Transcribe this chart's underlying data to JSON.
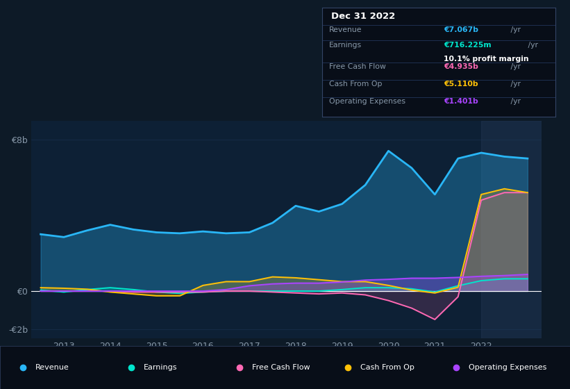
{
  "background_color": "#0d1a27",
  "plot_bg_color": "#0d2035",
  "title": "Dec 31 2022",
  "ylabel_top": "€8b",
  "ylabel_zero": "€0",
  "ylabel_neg": "-€2b",
  "x_years": [
    2012.5,
    2013,
    2013.5,
    2014,
    2014.5,
    2015,
    2015.5,
    2016,
    2016.5,
    2017,
    2017.5,
    2018,
    2018.5,
    2019,
    2019.5,
    2020,
    2020.5,
    2021,
    2021.5,
    2022,
    2022.5,
    2023
  ],
  "revenue": [
    3.0,
    2.85,
    3.2,
    3.5,
    3.25,
    3.1,
    3.05,
    3.15,
    3.05,
    3.1,
    3.6,
    4.5,
    4.2,
    4.6,
    5.6,
    7.4,
    6.5,
    5.1,
    7.0,
    7.3,
    7.1,
    7.0
  ],
  "earnings": [
    0.05,
    -0.05,
    0.08,
    0.18,
    0.08,
    -0.05,
    -0.12,
    -0.05,
    0.0,
    0.0,
    0.0,
    0.0,
    0.0,
    0.08,
    0.18,
    0.18,
    0.12,
    -0.05,
    0.28,
    0.55,
    0.65,
    0.65
  ],
  "free_cash_flow": [
    0.0,
    0.0,
    0.0,
    0.0,
    -0.05,
    -0.05,
    -0.05,
    -0.05,
    0.0,
    0.0,
    -0.05,
    -0.1,
    -0.15,
    -0.1,
    -0.2,
    -0.5,
    -0.9,
    -1.5,
    -0.3,
    4.8,
    5.2,
    5.2
  ],
  "cash_from_op": [
    0.18,
    0.15,
    0.1,
    -0.05,
    -0.15,
    -0.25,
    -0.25,
    0.3,
    0.5,
    0.5,
    0.75,
    0.7,
    0.6,
    0.5,
    0.5,
    0.3,
    0.05,
    -0.1,
    0.2,
    5.1,
    5.4,
    5.2
  ],
  "operating_expenses": [
    0.0,
    0.0,
    0.0,
    0.0,
    0.0,
    0.0,
    0.0,
    0.0,
    0.08,
    0.28,
    0.38,
    0.42,
    0.42,
    0.48,
    0.58,
    0.62,
    0.68,
    0.68,
    0.72,
    0.78,
    0.82,
    0.88
  ],
  "revenue_color": "#29b6f6",
  "earnings_color": "#00e5cc",
  "free_cash_flow_color": "#ff69b4",
  "cash_from_op_color": "#ffc107",
  "operating_expenses_color": "#aa44ff",
  "zero_line_color": "#ffffff",
  "grid_color": "#1e3a5f",
  "text_color": "#8899aa",
  "highlight_color": "#334466",
  "info_box": {
    "title": "Dec 31 2022",
    "revenue_label": "Revenue",
    "revenue_value": "€7.067b",
    "revenue_unit": "/yr",
    "earnings_label": "Earnings",
    "earnings_value": "€716.225m",
    "earnings_unit": "/yr",
    "margin_text": "10.1% profit margin",
    "fcf_label": "Free Cash Flow",
    "fcf_value": "€4.935b",
    "fcf_unit": "/yr",
    "cop_label": "Cash From Op",
    "cop_value": "€5.110b",
    "cop_unit": "/yr",
    "opex_label": "Operating Expenses",
    "opex_value": "€1.401b",
    "opex_unit": "/yr"
  },
  "legend_items": [
    "Revenue",
    "Earnings",
    "Free Cash Flow",
    "Cash From Op",
    "Operating Expenses"
  ],
  "legend_colors": [
    "#29b6f6",
    "#00e5cc",
    "#ff69b4",
    "#ffc107",
    "#aa44ff"
  ],
  "ylim": [
    -2.5,
    9.0
  ],
  "xlim": [
    2012.3,
    2023.3
  ]
}
